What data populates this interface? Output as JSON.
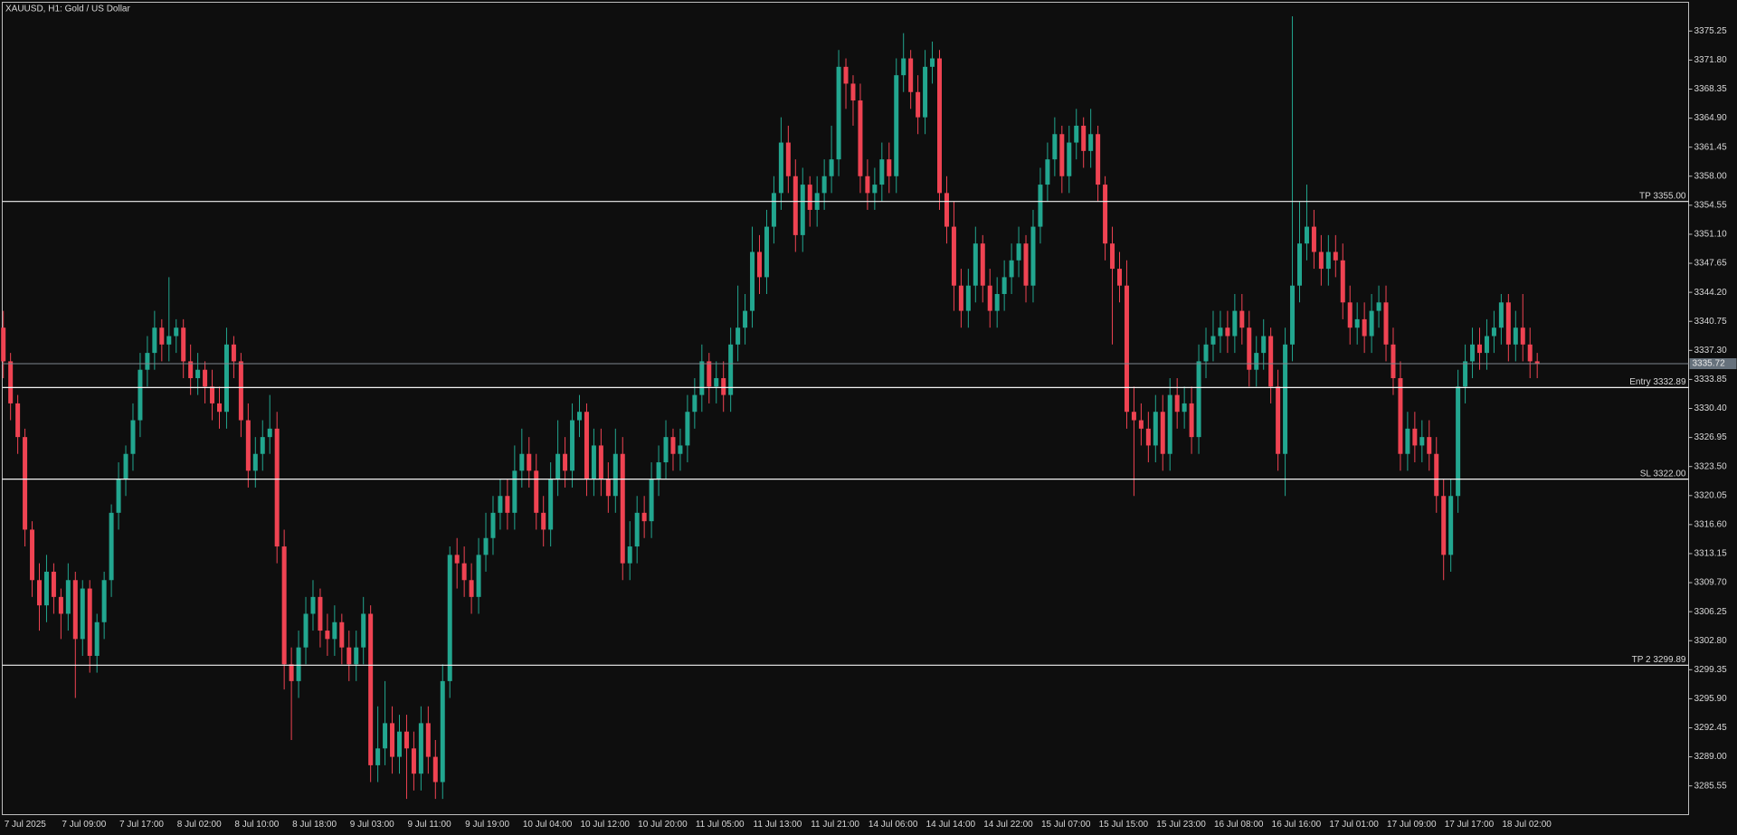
{
  "chart_data": {
    "type": "candlestick",
    "title": "XAUUSD, H1:  Gold / US Dollar",
    "up_color": "#22a68f",
    "down_color": "#ef4352",
    "categories": [
      "7 Jul 2025",
      null,
      null,
      null,
      null,
      null,
      null,
      null,
      "7 Jul 09:00",
      null,
      null,
      null,
      null,
      null,
      null,
      null,
      "7 Jul 17:00",
      null,
      null,
      null,
      null,
      null,
      null,
      null,
      "8 Jul 02:00",
      null,
      null,
      null,
      null,
      null,
      null,
      null,
      "8 Jul 10:00",
      null,
      null,
      null,
      null,
      null,
      null,
      null,
      "8 Jul 18:00",
      null,
      null,
      null,
      null,
      null,
      null,
      null,
      "9 Jul 03:00",
      null,
      null,
      null,
      null,
      null,
      null,
      null,
      "9 Jul 11:00",
      null,
      null,
      null,
      null,
      null,
      null,
      null,
      "9 Jul 19:00",
      null,
      null,
      null,
      null,
      null,
      null,
      null,
      "10 Jul 04:00",
      null,
      null,
      null,
      null,
      null,
      null,
      null,
      "10 Jul 12:00",
      null,
      null,
      null,
      null,
      null,
      null,
      null,
      "10 Jul 20:00",
      null,
      null,
      null,
      null,
      null,
      null,
      null,
      "11 Jul 05:00",
      null,
      null,
      null,
      null,
      null,
      null,
      null,
      "11 Jul 13:00",
      null,
      null,
      null,
      null,
      null,
      null,
      null,
      "11 Jul 21:00",
      null,
      null,
      null,
      null,
      null,
      null,
      null,
      "14 Jul 06:00",
      null,
      null,
      null,
      null,
      null,
      null,
      null,
      "14 Jul 14:00",
      null,
      null,
      null,
      null,
      null,
      null,
      null,
      "14 Jul 22:00",
      null,
      null,
      null,
      null,
      null,
      null,
      null,
      "15 Jul 07:00",
      null,
      null,
      null,
      null,
      null,
      null,
      null,
      "15 Jul 15:00",
      null,
      null,
      null,
      null,
      null,
      null,
      null,
      "15 Jul 23:00",
      null,
      null,
      null,
      null,
      null,
      null,
      null,
      "16 Jul 08:00",
      null,
      null,
      null,
      null,
      null,
      null,
      null,
      "16 Jul 16:00",
      null,
      null,
      null,
      null,
      null,
      null,
      null,
      "17 Jul 01:00",
      null,
      null,
      null,
      null,
      null,
      null,
      null,
      "17 Jul 09:00",
      null,
      null,
      null,
      null,
      null,
      null,
      null,
      "17 Jul 17:00",
      null,
      null,
      null,
      null,
      null,
      null,
      null,
      "18 Jul 02:00",
      null,
      null,
      null,
      null,
      null
    ],
    "open": [
      3340,
      3336,
      3331,
      3327,
      3316,
      3310,
      3307,
      3311,
      3308,
      3306,
      3310,
      3303,
      3309,
      3301,
      3305,
      3310,
      3318,
      3322,
      3325,
      3329,
      3335,
      3337,
      3340,
      3338,
      3339,
      3340,
      3336,
      3334,
      3335,
      3333,
      3331,
      3330,
      3338,
      3336,
      3329,
      3323,
      3325,
      3327,
      3328,
      3314,
      3300,
      3298,
      3302,
      3306,
      3308,
      3304,
      3303,
      3305,
      3302,
      3300,
      3302,
      3306,
      3288,
      3290,
      3293,
      3289,
      3292,
      3290,
      3287,
      3293,
      3289,
      3286,
      3298,
      3313,
      3312,
      3310,
      3308,
      3313,
      3315,
      3318,
      3320,
      3318,
      3323,
      3325,
      3323,
      3318,
      3316,
      3322,
      3325,
      3323,
      3329,
      3330,
      3322,
      3326,
      3322,
      3320,
      3325,
      3312,
      3314,
      3318,
      3317,
      3322,
      3324,
      3327,
      3325,
      3326,
      3330,
      3332,
      3336,
      3333,
      3334,
      3332,
      3338,
      3340,
      3342,
      3349,
      3346,
      3352,
      3356,
      3362,
      3358,
      3351,
      3357,
      3354,
      3356,
      3358,
      3360,
      3371,
      3369,
      3367,
      3358,
      3356,
      3357,
      3360,
      3358,
      3370,
      3372,
      3368,
      3365,
      3371,
      3372,
      3356,
      3352,
      3345,
      3342,
      3345,
      3350,
      3345,
      3342,
      3344,
      3346,
      3348,
      3350,
      3345,
      3352,
      3357,
      3360,
      3363,
      3358,
      3362,
      3364,
      3361,
      3363,
      3357,
      3350,
      3347,
      3345,
      3330,
      3329,
      3328,
      3326,
      3330,
      3325,
      3332,
      3330,
      3331,
      3327,
      3336,
      3338,
      3339,
      3340,
      3339,
      3342,
      3340,
      3335,
      3337,
      3339,
      3333,
      3325,
      3338,
      3345,
      3350,
      3352,
      3349,
      3347,
      3349,
      3348,
      3343,
      3340,
      3341,
      3339,
      3342,
      3343,
      3338,
      3334,
      3325,
      3328,
      3326,
      3327,
      3325,
      3320,
      3313,
      3320,
      3333,
      3336,
      3338,
      3337,
      3339,
      3340,
      3343,
      3338,
      3340,
      3338,
      3336
    ],
    "high": [
      3342,
      3337,
      3332,
      3328,
      3317,
      3312,
      3313,
      3312,
      3309,
      3312,
      3311,
      3310,
      3310,
      3306,
      3311,
      3319,
      3324,
      3326,
      3331,
      3337,
      3339,
      3342,
      3341,
      3346,
      3341,
      3341,
      3338,
      3337,
      3336,
      3335,
      3333,
      3340,
      3339,
      3337,
      3331,
      3327,
      3329,
      3332,
      3330,
      3316,
      3302,
      3304,
      3308,
      3310,
      3309,
      3306,
      3307,
      3306,
      3304,
      3304,
      3308,
      3307,
      3295,
      3298,
      3295,
      3294,
      3294,
      3292,
      3295,
      3295,
      3291,
      3300,
      3314,
      3315,
      3314,
      3312,
      3315,
      3318,
      3320,
      3322,
      3322,
      3326,
      3328,
      3327,
      3325,
      3320,
      3324,
      3329,
      3327,
      3331,
      3332,
      3331,
      3328,
      3328,
      3324,
      3328,
      3327,
      3317,
      3320,
      3320,
      3324,
      3326,
      3329,
      3328,
      3328,
      3332,
      3334,
      3338,
      3337,
      3336,
      3336,
      3340,
      3345,
      3344,
      3352,
      3351,
      3354,
      3358,
      3365,
      3364,
      3360,
      3359,
      3358,
      3358,
      3360,
      3364,
      3373,
      3372,
      3370,
      3369,
      3360,
      3359,
      3362,
      3362,
      3372,
      3375,
      3373,
      3370,
      3373,
      3374,
      3373,
      3358,
      3355,
      3347,
      3347,
      3352,
      3351,
      3347,
      3346,
      3348,
      3350,
      3352,
      3351,
      3354,
      3359,
      3362,
      3365,
      3364,
      3364,
      3366,
      3365,
      3366,
      3364,
      3358,
      3352,
      3349,
      3348,
      3333,
      3331,
      3330,
      3332,
      3332,
      3334,
      3334,
      3333,
      3333,
      3338,
      3340,
      3342,
      3342,
      3342,
      3344,
      3344,
      3342,
      3339,
      3341,
      3340,
      3335,
      3340,
      3377,
      3355,
      3357,
      3354,
      3351,
      3351,
      3351,
      3350,
      3345,
      3343,
      3343,
      3344,
      3345,
      3345,
      3340,
      3336,
      3330,
      3330,
      3329,
      3329,
      3327,
      3322,
      3322,
      3335,
      3338,
      3340,
      3340,
      3341,
      3342,
      3344,
      3344,
      3342,
      3344,
      3340,
      3337
    ],
    "low": [
      3334,
      3329,
      3325,
      3314,
      3308,
      3304,
      3305,
      3306,
      3303,
      3304,
      3296,
      3301,
      3299,
      3299,
      3303,
      3308,
      3316,
      3320,
      3323,
      3327,
      3333,
      3335,
      3336,
      3336,
      3337,
      3334,
      3332,
      3332,
      3331,
      3329,
      3328,
      3328,
      3334,
      3327,
      3321,
      3321,
      3323,
      3325,
      3312,
      3297,
      3291,
      3296,
      3300,
      3304,
      3302,
      3301,
      3301,
      3300,
      3298,
      3298,
      3300,
      3286,
      3286,
      3288,
      3287,
      3287,
      3284,
      3285,
      3285,
      3287,
      3284,
      3284,
      3296,
      3309,
      3308,
      3306,
      3306,
      3311,
      3313,
      3316,
      3316,
      3316,
      3321,
      3321,
      3316,
      3314,
      3314,
      3320,
      3321,
      3321,
      3327,
      3320,
      3320,
      3320,
      3318,
      3318,
      3310,
      3310,
      3312,
      3315,
      3315,
      3320,
      3322,
      3323,
      3323,
      3324,
      3328,
      3330,
      3331,
      3331,
      3330,
      3330,
      3336,
      3338,
      3340,
      3344,
      3344,
      3350,
      3354,
      3356,
      3349,
      3349,
      3352,
      3352,
      3354,
      3356,
      3358,
      3366,
      3364,
      3356,
      3354,
      3354,
      3355,
      3356,
      3356,
      3368,
      3366,
      3363,
      3363,
      3369,
      3354,
      3350,
      3342,
      3340,
      3340,
      3343,
      3343,
      3340,
      3340,
      3342,
      3344,
      3346,
      3343,
      3343,
      3350,
      3355,
      3358,
      3356,
      3356,
      3360,
      3359,
      3359,
      3355,
      3348,
      3338,
      3343,
      3328,
      3320,
      3326,
      3324,
      3324,
      3323,
      3323,
      3328,
      3328,
      3325,
      3325,
      3334,
      3336,
      3337,
      3337,
      3337,
      3338,
      3333,
      3333,
      3335,
      3331,
      3323,
      3320,
      3336,
      3343,
      3348,
      3347,
      3345,
      3345,
      3346,
      3341,
      3338,
      3338,
      3337,
      3337,
      3340,
      3336,
      3332,
      3323,
      3323,
      3324,
      3324,
      3323,
      3318,
      3310,
      3311,
      3318,
      3331,
      3334,
      3335,
      3335,
      3337,
      3338,
      3336,
      3336,
      3336,
      3334,
      3334
    ],
    "close": [
      3336,
      3331,
      3327,
      3316,
      3310,
      3307,
      3311,
      3308,
      3306,
      3310,
      3303,
      3309,
      3301,
      3305,
      3310,
      3318,
      3322,
      3325,
      3329,
      3335,
      3337,
      3340,
      3338,
      3339,
      3340,
      3336,
      3334,
      3335,
      3333,
      3331,
      3330,
      3338,
      3336,
      3329,
      3323,
      3325,
      3327,
      3328,
      3314,
      3300,
      3298,
      3302,
      3306,
      3308,
      3304,
      3303,
      3305,
      3302,
      3300,
      3302,
      3306,
      3288,
      3290,
      3293,
      3289,
      3292,
      3290,
      3287,
      3293,
      3289,
      3286,
      3298,
      3313,
      3312,
      3310,
      3308,
      3313,
      3315,
      3318,
      3320,
      3318,
      3323,
      3325,
      3323,
      3318,
      3316,
      3322,
      3325,
      3323,
      3329,
      3330,
      3322,
      3326,
      3322,
      3320,
      3325,
      3312,
      3314,
      3318,
      3317,
      3322,
      3324,
      3327,
      3325,
      3326,
      3330,
      3332,
      3336,
      3333,
      3334,
      3332,
      3338,
      3340,
      3342,
      3349,
      3346,
      3352,
      3356,
      3362,
      3358,
      3351,
      3357,
      3354,
      3356,
      3358,
      3360,
      3371,
      3369,
      3367,
      3358,
      3356,
      3357,
      3360,
      3358,
      3370,
      3372,
      3368,
      3365,
      3371,
      3372,
      3356,
      3352,
      3345,
      3342,
      3345,
      3350,
      3345,
      3342,
      3344,
      3346,
      3348,
      3350,
      3345,
      3352,
      3357,
      3360,
      3363,
      3358,
      3362,
      3364,
      3361,
      3363,
      3357,
      3350,
      3347,
      3345,
      3330,
      3329,
      3328,
      3326,
      3330,
      3325,
      3332,
      3330,
      3331,
      3327,
      3336,
      3338,
      3339,
      3340,
      3339,
      3342,
      3340,
      3335,
      3337,
      3339,
      3333,
      3325,
      3338,
      3345,
      3350,
      3352,
      3349,
      3347,
      3349,
      3348,
      3343,
      3340,
      3341,
      3339,
      3342,
      3343,
      3338,
      3334,
      3325,
      3328,
      3326,
      3327,
      3325,
      3320,
      3313,
      3320,
      3333,
      3336,
      3338,
      3337,
      3339,
      3340,
      3343,
      3338,
      3340,
      3338,
      3336,
      3335.72
    ],
    "ylim": [
      3282.13,
      3378.67
    ],
    "yticks": [
      3375.25,
      {
        "value": 3371.8,
        "label": "3371.80"
      },
      3368.35,
      {
        "value": 3364.9,
        "label": "3364.90"
      },
      3361.45,
      {
        "value": 3358,
        "label": "3358.00"
      },
      3354.55,
      {
        "value": 3351.1,
        "label": "3351.10"
      },
      3347.65,
      {
        "value": 3344.2,
        "label": "3344.20"
      },
      3340.75,
      {
        "value": 3337.3,
        "label": "3337.30"
      },
      3333.85,
      {
        "value": 3330.4,
        "label": "3330.40"
      },
      3326.95,
      {
        "value": 3323.5,
        "label": "3323.50"
      },
      3320.05,
      {
        "value": 3316.6,
        "label": "3316.60"
      },
      3313.15,
      {
        "value": 3309.7,
        "label": "3309.70"
      },
      3306.25,
      {
        "value": 3302.8,
        "label": "3302.80"
      },
      3299.35,
      {
        "value": 3295.9,
        "label": "3295.90"
      },
      3292.45,
      {
        "value": 3289,
        "label": "3289.00"
      },
      3285.55
    ],
    "levels": [
      {
        "label": "TP 3355.00",
        "value": 3355
      },
      {
        "label": "Entry 3332.89",
        "value": 3332.89
      },
      {
        "label": "SL 3322.00",
        "value": 3322
      },
      {
        "label": "TP 2 3299.89",
        "value": 3299.89
      }
    ],
    "current_price": 3335.72
  }
}
